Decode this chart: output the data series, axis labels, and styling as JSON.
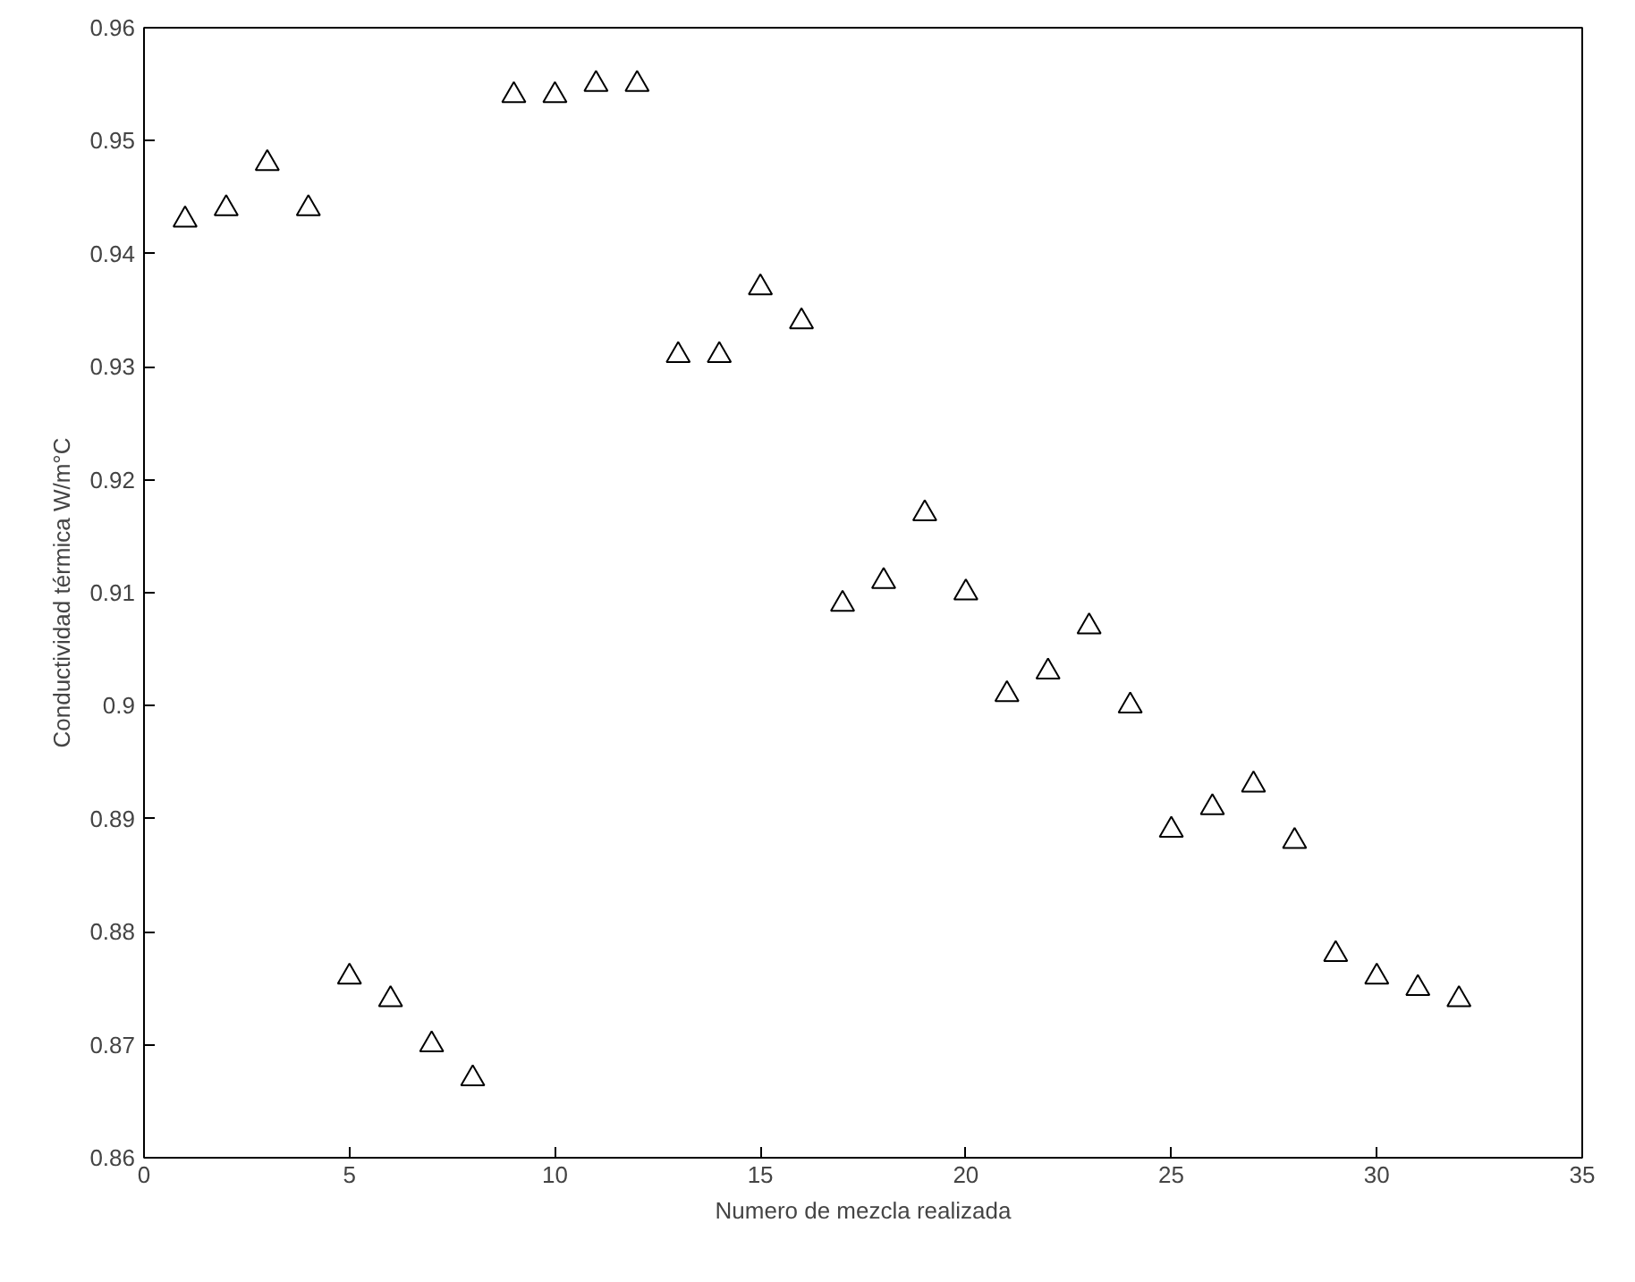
{
  "chart_data": {
    "type": "scatter",
    "xlabel": "Numero de mezcla realizada",
    "ylabel": "Conductividad térmica W/m°C",
    "x": [
      1,
      2,
      3,
      4,
      5,
      6,
      7,
      8,
      9,
      10,
      11,
      12,
      13,
      14,
      15,
      16,
      17,
      18,
      19,
      20,
      21,
      22,
      23,
      24,
      25,
      26,
      27,
      28,
      29,
      30,
      31,
      32
    ],
    "series": [
      {
        "color": "#000000",
        "values": [
          0.943,
          0.944,
          0.948,
          0.944,
          0.876,
          0.874,
          0.87,
          0.867,
          0.954,
          0.954,
          0.955,
          0.955,
          0.931,
          0.931,
          0.937,
          0.934,
          0.909,
          0.911,
          0.917,
          0.91,
          0.901,
          0.903,
          0.907,
          0.9,
          0.889,
          0.891,
          0.893,
          0.888,
          0.878,
          0.876,
          0.875,
          0.874
        ]
      }
    ],
    "marker": "triangle",
    "grid": false,
    "xlim": [
      0,
      35
    ],
    "xticks": [
      0,
      5,
      10,
      15,
      20,
      25,
      30,
      35
    ],
    "ylim": [
      0.86,
      0.96
    ],
    "yticks": [
      0.86,
      0.87,
      0.88,
      0.89,
      0.9,
      0.91,
      0.92,
      0.93,
      0.94,
      0.95,
      0.96
    ]
  }
}
